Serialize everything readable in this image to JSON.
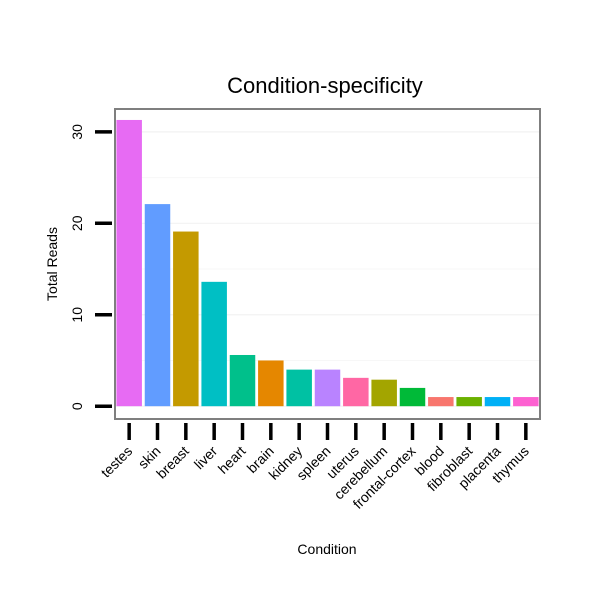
{
  "chart_data": {
    "type": "bar",
    "title": "Condition-specificity",
    "xlabel": "Condition",
    "ylabel": "Total Reads",
    "ylim": [
      -1.4,
      32.5
    ],
    "yticks": [
      0,
      10,
      20,
      30
    ],
    "grid": true,
    "legend": "none",
    "categories": [
      "testes",
      "skin",
      "breast",
      "liver",
      "heart",
      "brain",
      "kidney",
      "spleen",
      "uterus",
      "cerebellum",
      "frontal-cortex",
      "blood",
      "fibroblast",
      "placenta",
      "thymus"
    ],
    "values": [
      31.3,
      22.1,
      19.1,
      13.6,
      5.6,
      5.0,
      4.0,
      4.0,
      3.1,
      2.9,
      2.0,
      1.0,
      1.0,
      1.0,
      1.0
    ],
    "colors": [
      "#E76BF3",
      "#619CFF",
      "#C49A00",
      "#00BFC4",
      "#00C08B",
      "#E58700",
      "#00C1A3",
      "#B983FF",
      "#FF67A4",
      "#A3A500",
      "#00BA38",
      "#F8766D",
      "#6BB100",
      "#00B0F6",
      "#FD61D1"
    ]
  }
}
